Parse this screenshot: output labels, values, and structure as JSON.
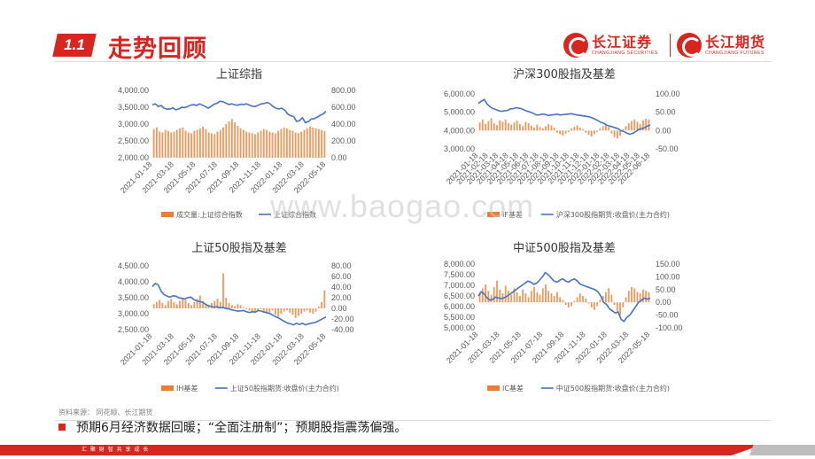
{
  "header": {
    "section_number": "1.1",
    "title": "走势回顾",
    "logo1_cn": "长江证券",
    "logo1_en": "CHANGJIANG SECURITIES",
    "logo2_cn": "长江期货",
    "logo2_en": "CHANGJIANG FUTURES"
  },
  "watermark": "www.baogao.com",
  "footer": {
    "source": "资料来源：  同花顺、长江期货",
    "summary": "预期6月经济数据回暖；“全面注册制”；预期股指震荡偏强。",
    "band_text": "汇 聚 财 智      共 享 成 长"
  },
  "colors": {
    "accent": "#d7261f",
    "bar": "#ed7d31",
    "line": "#4472c4"
  },
  "chart_data": [
    {
      "type": "bar+line",
      "title": "上证综指",
      "x_ticks": [
        "2021-01-18",
        "2021-03-18",
        "2021-05-18",
        "2021-07-18",
        "2021-09-18",
        "2021-11-18",
        "2022-01-18",
        "2022-03-18",
        "2022-05-18"
      ],
      "y_left_ticks": [
        "4,000.00",
        "3,500.00",
        "3,000.00",
        "2,500.00",
        "2,000.00"
      ],
      "y_right_ticks": [
        "800.00",
        "600.00",
        "400.00",
        "200.00",
        "0.00"
      ],
      "ylim_left": [
        2000,
        4000
      ],
      "ylim_right": [
        0,
        800
      ],
      "bar_baseline": 0,
      "series": [
        {
          "name": "成交量:上证综合指数",
          "kind": "bar",
          "axis": "right",
          "values": [
            340,
            360,
            310,
            300,
            330,
            320,
            300,
            310,
            330,
            350,
            360,
            320,
            300,
            290,
            320,
            330,
            350,
            370,
            340,
            300,
            290,
            280,
            310,
            330,
            360,
            400,
            430,
            460,
            420,
            380,
            350,
            330,
            310,
            300,
            290,
            280,
            300,
            320,
            340,
            330,
            310,
            300,
            290,
            320,
            340,
            360,
            350,
            330,
            320,
            300,
            290,
            310,
            330,
            350,
            370,
            360,
            350,
            340,
            330,
            320
          ]
        },
        {
          "name": "上证综合指数",
          "kind": "line",
          "axis": "left",
          "values": [
            3570,
            3600,
            3520,
            3550,
            3470,
            3440,
            3450,
            3480,
            3420,
            3450,
            3500,
            3490,
            3520,
            3560,
            3580,
            3550,
            3600,
            3560,
            3520,
            3470,
            3530,
            3590,
            3620,
            3680,
            3660,
            3620,
            3580,
            3600,
            3570,
            3560,
            3590,
            3580,
            3600,
            3560,
            3530,
            3520,
            3560,
            3600,
            3610,
            3640,
            3600,
            3520,
            3470,
            3450,
            3470,
            3410,
            3300,
            3250,
            3220,
            3080,
            3100,
            3190,
            3040,
            3070,
            3150,
            3160,
            3200,
            3260,
            3300,
            3380
          ]
        }
      ]
    },
    {
      "type": "bar+line",
      "title": "沪深300股指及基差",
      "x_ticks": [
        "2021-01-18",
        "2021-02-18",
        "2021-03-18",
        "2021-04-18",
        "2021-05-18",
        "2021-06-18",
        "2021-07-18",
        "2021-08-18",
        "2021-09-18",
        "2021-10-18",
        "2021-11-18",
        "2021-12-18",
        "2022-01-18",
        "2022-02-18",
        "2022-03-18",
        "2022-04-18",
        "2022-05-18",
        "2022-06-18"
      ],
      "y_left_ticks": [
        "6,000.00",
        "5,000.00",
        "4,000.00",
        "3,000.00"
      ],
      "y_right_ticks": [
        "100.00",
        "50.00",
        "0.00",
        "-50.00"
      ],
      "ylim_left": [
        3000,
        6000
      ],
      "ylim_right": [
        -50,
        100
      ],
      "bar_baseline": 0,
      "series": [
        {
          "name": "IF基差",
          "kind": "bar",
          "axis": "right",
          "values": [
            22,
            30,
            18,
            26,
            34,
            20,
            15,
            28,
            24,
            30,
            20,
            16,
            22,
            28,
            18,
            12,
            24,
            20,
            14,
            8,
            16,
            10,
            6,
            12,
            18,
            14,
            8,
            -6,
            -10,
            -14,
            -8,
            -4,
            6,
            10,
            14,
            8,
            4,
            -6,
            -12,
            -16,
            -10,
            -4,
            6,
            12,
            18,
            10,
            -8,
            -18,
            -22,
            -14,
            4,
            12,
            20,
            26,
            30,
            24,
            18,
            28,
            32,
            30
          ]
        },
        {
          "name": "沪深300股指期货:收盘价(主力合约)",
          "kind": "line",
          "axis": "left",
          "values": [
            5480,
            5600,
            5700,
            5450,
            5300,
            5200,
            5150,
            5080,
            5050,
            5080,
            5100,
            5180,
            5200,
            5250,
            5220,
            5180,
            5100,
            5050,
            5000,
            4920,
            4850,
            4860,
            4900,
            4880,
            4820,
            4850,
            4870,
            4900,
            4850,
            4870,
            4880,
            4900,
            4920,
            4880,
            4850,
            4830,
            4800,
            4780,
            4750,
            4700,
            4620,
            4550,
            4450,
            4400,
            4300,
            4250,
            4200,
            4150,
            4100,
            3990,
            3950,
            3850,
            3800,
            3850,
            3950,
            4050,
            4100,
            4150,
            4250,
            4300
          ]
        }
      ]
    },
    {
      "type": "bar+line",
      "title": "上证50股指及基差",
      "x_ticks": [
        "2021-01-18",
        "2021-03-18",
        "2021-05-18",
        "2021-07-18",
        "2021-09-18",
        "2021-11-18",
        "2022-01-18",
        "2022-03-18",
        "2022-05-18"
      ],
      "y_left_ticks": [
        "4,500.00",
        "4,000.00",
        "3,500.00",
        "3,000.00",
        "2,500.00"
      ],
      "y_right_ticks": [
        "80.00",
        "60.00",
        "40.00",
        "20.00",
        "0.00",
        "-20.00",
        "-40.00"
      ],
      "ylim_left": [
        2500,
        4500
      ],
      "ylim_right": [
        -40,
        80
      ],
      "bar_baseline": 0,
      "series": [
        {
          "name": "IH基差",
          "kind": "bar",
          "axis": "right",
          "values": [
            8,
            12,
            16,
            10,
            6,
            14,
            18,
            12,
            8,
            14,
            20,
            16,
            10,
            6,
            12,
            18,
            24,
            14,
            8,
            6,
            10,
            14,
            18,
            12,
            66,
            20,
            10,
            6,
            4,
            8,
            6,
            2,
            -2,
            -4,
            -6,
            -8,
            -4,
            -2,
            -6,
            -10,
            -8,
            -4,
            -12,
            -16,
            -10,
            -6,
            -4,
            -8,
            -12,
            -18,
            -14,
            -10,
            -6,
            -4,
            -8,
            -10,
            -6,
            4,
            12,
            34
          ]
        },
        {
          "name": "上证50股指期货:收盘价(主力合约)",
          "kind": "line",
          "axis": "left",
          "values": [
            3850,
            3950,
            3900,
            3700,
            3600,
            3550,
            3520,
            3560,
            3550,
            3500,
            3480,
            3460,
            3500,
            3520,
            3450,
            3400,
            3380,
            3360,
            3300,
            3250,
            3230,
            3200,
            3220,
            3180,
            3200,
            3160,
            3150,
            3120,
            3100,
            3080,
            3090,
            3100,
            3060,
            3040,
            3060,
            3050,
            3100,
            3080,
            3050,
            3030,
            3000,
            2950,
            2900,
            2860,
            2800,
            2750,
            2700,
            2680,
            2650,
            2700,
            2660,
            2700,
            2650,
            2680,
            2700,
            2720,
            2750,
            2800,
            2850,
            2900
          ]
        }
      ]
    },
    {
      "type": "bar+line",
      "title": "中证500股指及基差",
      "x_ticks": [
        "2021-01-18",
        "2021-03-18",
        "2021-05-18",
        "2021-07-18",
        "2021-09-18",
        "2021-11-18",
        "2022-01-18",
        "2022-03-18",
        "2022-05-18"
      ],
      "y_left_ticks": [
        "8,000.00",
        "7,500.00",
        "7,000.00",
        "6,500.00",
        "6,000.00",
        "5,500.00",
        "5,000.00"
      ],
      "y_right_ticks": [
        "150.00",
        "100.00",
        "50.00",
        "0.00",
        "-50.00",
        "-100.00"
      ],
      "ylim_left": [
        5000,
        8000
      ],
      "ylim_right": [
        -100,
        150
      ],
      "bar_baseline": 0,
      "series": [
        {
          "name": "IC基差",
          "kind": "bar",
          "axis": "right",
          "values": [
            40,
            55,
            70,
            45,
            30,
            60,
            85,
            50,
            35,
            65,
            45,
            30,
            55,
            40,
            25,
            50,
            35,
            20,
            45,
            60,
            40,
            30,
            55,
            70,
            45,
            35,
            25,
            40,
            20,
            10,
            -10,
            -20,
            -15,
            5,
            20,
            35,
            25,
            15,
            -5,
            -20,
            -30,
            -15,
            10,
            25,
            40,
            55,
            30,
            -10,
            -35,
            -50,
            -20,
            20,
            45,
            60,
            55,
            40,
            35,
            50,
            45,
            40
          ]
        },
        {
          "name": "中证500股指期货:收盘价(主力合约)",
          "kind": "line",
          "axis": "left",
          "values": [
            6500,
            6700,
            6600,
            6400,
            6300,
            6350,
            6450,
            6400,
            6380,
            6420,
            6500,
            6600,
            6700,
            6800,
            6900,
            7000,
            7100,
            7200,
            7150,
            7050,
            7100,
            7250,
            7400,
            7600,
            7500,
            7350,
            7200,
            7150,
            7250,
            7300,
            7200,
            7150,
            7250,
            7300,
            7200,
            7050,
            7000,
            6950,
            6900,
            6850,
            6800,
            6700,
            6500,
            6200,
            6100,
            5900,
            5800,
            5700,
            5750,
            5400,
            5300,
            5500,
            5600,
            5800,
            6000,
            6200,
            6300,
            6400,
            6350,
            6400
          ]
        }
      ]
    }
  ]
}
